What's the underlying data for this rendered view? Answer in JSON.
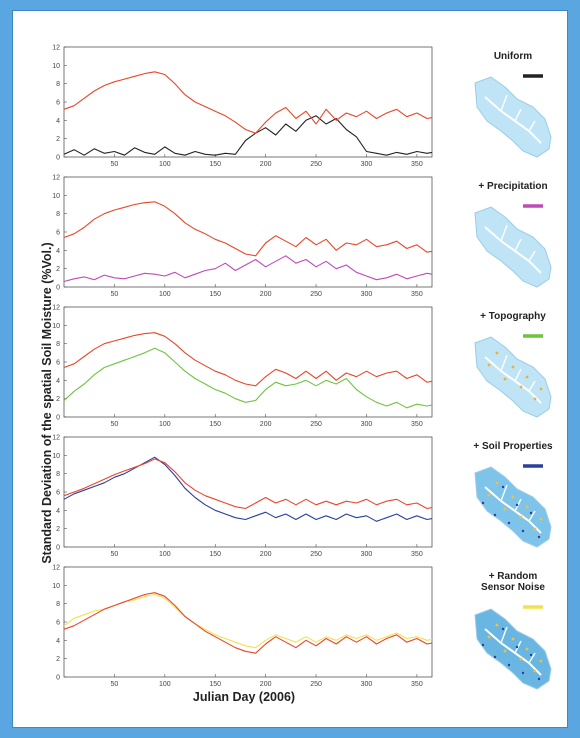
{
  "figure": {
    "ylabel": "Standard Deviation of the spatial Soil Moisture (%Vol.)",
    "xlabel": "Julian Day (2006)"
  },
  "chart_data": [
    {
      "type": "line",
      "xlim": [
        0,
        365
      ],
      "ylim": [
        0,
        12
      ],
      "x_ticks": [
        50,
        100,
        150,
        200,
        250,
        300,
        350
      ],
      "y_ticks": [
        0,
        2,
        4,
        6,
        8,
        10,
        12
      ],
      "legend_title": "Uniform",
      "series": [
        {
          "color": "#e8472a",
          "x": [
            0,
            10,
            20,
            30,
            40,
            50,
            60,
            70,
            80,
            90,
            100,
            110,
            120,
            130,
            140,
            150,
            160,
            170,
            180,
            190,
            200,
            210,
            220,
            230,
            240,
            250,
            260,
            270,
            280,
            290,
            300,
            310,
            320,
            330,
            340,
            350,
            360,
            365
          ],
          "y": [
            5.2,
            5.6,
            6.4,
            7.2,
            7.8,
            8.2,
            8.5,
            8.8,
            9.1,
            9.3,
            9.0,
            8.0,
            6.8,
            6.0,
            5.5,
            5.0,
            4.5,
            3.8,
            3.0,
            2.6,
            3.8,
            4.8,
            5.4,
            4.2,
            5.0,
            3.6,
            5.2,
            4.0,
            4.8,
            4.4,
            5.0,
            4.2,
            4.8,
            5.2,
            4.4,
            4.8,
            4.2,
            4.3
          ]
        },
        {
          "color": "#222222",
          "x": [
            0,
            10,
            20,
            30,
            40,
            50,
            60,
            70,
            80,
            90,
            100,
            110,
            120,
            130,
            140,
            150,
            160,
            170,
            180,
            190,
            200,
            210,
            220,
            230,
            240,
            250,
            260,
            270,
            280,
            290,
            300,
            310,
            320,
            330,
            340,
            350,
            360,
            365
          ],
          "y": [
            0.3,
            0.8,
            0.2,
            0.9,
            0.4,
            0.6,
            0.2,
            1.0,
            0.5,
            0.3,
            1.1,
            0.4,
            0.2,
            0.6,
            0.3,
            0.2,
            0.4,
            0.3,
            1.8,
            2.6,
            3.2,
            2.4,
            3.6,
            2.8,
            4.0,
            4.5,
            3.6,
            4.2,
            3.0,
            2.2,
            0.6,
            0.4,
            0.2,
            0.5,
            0.3,
            0.6,
            0.4,
            0.5
          ]
        }
      ]
    },
    {
      "type": "line",
      "xlim": [
        0,
        365
      ],
      "ylim": [
        0,
        12
      ],
      "x_ticks": [
        50,
        100,
        150,
        200,
        250,
        300,
        350
      ],
      "y_ticks": [
        0,
        2,
        4,
        6,
        8,
        10,
        12
      ],
      "legend_title": "+ Precipitation",
      "series": [
        {
          "color": "#e8472a",
          "x": [
            0,
            10,
            20,
            30,
            40,
            50,
            60,
            70,
            80,
            90,
            100,
            110,
            120,
            130,
            140,
            150,
            160,
            170,
            180,
            190,
            200,
            210,
            220,
            230,
            240,
            250,
            260,
            270,
            280,
            290,
            300,
            310,
            320,
            330,
            340,
            350,
            360,
            365
          ],
          "y": [
            5.4,
            5.8,
            6.5,
            7.4,
            8.0,
            8.4,
            8.7,
            9.0,
            9.2,
            9.3,
            8.8,
            8.0,
            7.0,
            6.3,
            5.8,
            5.2,
            4.8,
            4.2,
            3.6,
            3.4,
            4.8,
            5.6,
            5.0,
            4.4,
            5.4,
            4.6,
            5.2,
            4.0,
            4.8,
            4.6,
            5.2,
            4.4,
            4.6,
            5.0,
            4.2,
            4.6,
            3.8,
            3.9
          ]
        },
        {
          "color": "#c04ab8",
          "x": [
            0,
            10,
            20,
            30,
            40,
            50,
            60,
            70,
            80,
            90,
            100,
            110,
            120,
            130,
            140,
            150,
            160,
            170,
            180,
            190,
            200,
            210,
            220,
            230,
            240,
            250,
            260,
            270,
            280,
            290,
            300,
            310,
            320,
            330,
            340,
            350,
            360,
            365
          ],
          "y": [
            0.6,
            0.9,
            1.1,
            0.8,
            1.3,
            1.0,
            0.9,
            1.2,
            1.5,
            1.4,
            1.2,
            1.6,
            1.0,
            1.4,
            1.8,
            2.0,
            2.6,
            1.8,
            2.4,
            3.0,
            2.2,
            2.8,
            3.4,
            2.6,
            3.0,
            2.2,
            2.8,
            2.0,
            2.4,
            1.6,
            1.2,
            0.8,
            1.0,
            1.4,
            0.9,
            1.2,
            1.5,
            1.4
          ]
        }
      ]
    },
    {
      "type": "line",
      "xlim": [
        0,
        365
      ],
      "ylim": [
        0,
        12
      ],
      "x_ticks": [
        50,
        100,
        150,
        200,
        250,
        300,
        350
      ],
      "y_ticks": [
        0,
        2,
        4,
        6,
        8,
        10,
        12
      ],
      "legend_title": "+ Topography",
      "series": [
        {
          "color": "#e8472a",
          "x": [
            0,
            10,
            20,
            30,
            40,
            50,
            60,
            70,
            80,
            90,
            100,
            110,
            120,
            130,
            140,
            150,
            160,
            170,
            180,
            190,
            200,
            210,
            220,
            230,
            240,
            250,
            260,
            270,
            280,
            290,
            300,
            310,
            320,
            330,
            340,
            350,
            360,
            365
          ],
          "y": [
            5.4,
            5.8,
            6.6,
            7.4,
            8.0,
            8.3,
            8.6,
            8.9,
            9.1,
            9.2,
            8.8,
            8.0,
            7.0,
            6.2,
            5.6,
            5.0,
            4.6,
            4.0,
            3.6,
            3.4,
            4.4,
            5.2,
            4.8,
            4.2,
            5.0,
            4.2,
            5.0,
            4.0,
            4.8,
            4.4,
            5.0,
            4.4,
            4.8,
            5.0,
            4.2,
            4.6,
            3.8,
            3.9
          ]
        },
        {
          "color": "#6fc43e",
          "x": [
            0,
            10,
            20,
            30,
            40,
            50,
            60,
            70,
            80,
            90,
            100,
            110,
            120,
            130,
            140,
            150,
            160,
            170,
            180,
            190,
            200,
            210,
            220,
            230,
            240,
            250,
            260,
            270,
            280,
            290,
            300,
            310,
            320,
            330,
            340,
            350,
            360,
            365
          ],
          "y": [
            1.8,
            2.8,
            3.6,
            4.6,
            5.4,
            5.8,
            6.2,
            6.6,
            7.0,
            7.5,
            7.0,
            6.0,
            5.0,
            4.2,
            3.6,
            3.0,
            2.6,
            2.0,
            1.6,
            1.8,
            3.0,
            3.8,
            3.4,
            3.6,
            4.0,
            3.4,
            4.0,
            3.6,
            4.2,
            3.0,
            2.2,
            1.6,
            1.2,
            1.6,
            1.0,
            1.4,
            1.2,
            1.3
          ]
        }
      ]
    },
    {
      "type": "line",
      "xlim": [
        0,
        365
      ],
      "ylim": [
        0,
        12
      ],
      "x_ticks": [
        50,
        100,
        150,
        200,
        250,
        300,
        350
      ],
      "y_ticks": [
        0,
        2,
        4,
        6,
        8,
        10,
        12
      ],
      "legend_title": "+ Soil Properties",
      "series": [
        {
          "color": "#e8472a",
          "x": [
            0,
            10,
            20,
            30,
            40,
            50,
            60,
            70,
            80,
            90,
            100,
            110,
            120,
            130,
            140,
            150,
            160,
            170,
            180,
            190,
            200,
            210,
            220,
            230,
            240,
            250,
            260,
            270,
            280,
            290,
            300,
            310,
            320,
            330,
            340,
            350,
            360,
            365
          ],
          "y": [
            5.6,
            6.0,
            6.4,
            6.9,
            7.4,
            7.9,
            8.3,
            8.7,
            9.1,
            9.6,
            9.2,
            8.2,
            7.0,
            6.2,
            5.6,
            5.2,
            4.8,
            4.4,
            4.2,
            4.8,
            5.4,
            4.8,
            5.2,
            4.6,
            5.2,
            4.6,
            5.0,
            4.6,
            5.0,
            4.8,
            5.2,
            4.6,
            5.0,
            5.2,
            4.6,
            4.8,
            4.2,
            4.3
          ]
        },
        {
          "color": "#2b3f9e",
          "x": [
            0,
            10,
            20,
            30,
            40,
            50,
            60,
            70,
            80,
            90,
            100,
            110,
            120,
            130,
            140,
            150,
            160,
            170,
            180,
            190,
            200,
            210,
            220,
            230,
            240,
            250,
            260,
            270,
            280,
            290,
            300,
            310,
            320,
            330,
            340,
            350,
            360,
            365
          ],
          "y": [
            5.2,
            5.8,
            6.2,
            6.6,
            7.0,
            7.6,
            8.0,
            8.6,
            9.2,
            9.8,
            9.0,
            7.8,
            6.4,
            5.4,
            4.6,
            4.0,
            3.6,
            3.2,
            3.0,
            3.4,
            3.8,
            3.2,
            3.6,
            3.0,
            3.6,
            3.0,
            3.4,
            3.0,
            3.6,
            3.2,
            3.4,
            2.8,
            3.2,
            3.6,
            3.0,
            3.4,
            3.0,
            3.1
          ]
        }
      ]
    },
    {
      "type": "line",
      "xlim": [
        0,
        365
      ],
      "ylim": [
        0,
        12
      ],
      "x_ticks": [
        50,
        100,
        150,
        200,
        250,
        300,
        350
      ],
      "y_ticks": [
        0,
        2,
        4,
        6,
        8,
        10,
        12
      ],
      "legend_title": "+ Random Sensor Noise",
      "series": [
        {
          "color": "#e8472a",
          "x": [
            0,
            10,
            20,
            30,
            40,
            50,
            60,
            70,
            80,
            90,
            100,
            110,
            120,
            130,
            140,
            150,
            160,
            170,
            180,
            190,
            200,
            210,
            220,
            230,
            240,
            250,
            260,
            270,
            280,
            290,
            300,
            310,
            320,
            330,
            340,
            350,
            360,
            365
          ],
          "y": [
            5.2,
            5.6,
            6.2,
            6.8,
            7.4,
            7.8,
            8.2,
            8.6,
            9.0,
            9.2,
            8.8,
            7.8,
            6.6,
            5.8,
            5.0,
            4.4,
            3.8,
            3.2,
            2.8,
            2.6,
            3.6,
            4.4,
            3.8,
            3.2,
            4.0,
            3.4,
            4.2,
            3.6,
            4.4,
            3.8,
            4.4,
            3.6,
            4.2,
            4.6,
            3.8,
            4.2,
            3.6,
            3.7
          ]
        },
        {
          "color": "#f3e24c",
          "x": [
            0,
            10,
            20,
            30,
            40,
            50,
            60,
            70,
            80,
            90,
            100,
            110,
            120,
            130,
            140,
            150,
            160,
            170,
            180,
            190,
            200,
            210,
            220,
            230,
            240,
            250,
            260,
            270,
            280,
            290,
            300,
            310,
            320,
            330,
            340,
            350,
            360,
            365
          ],
          "y": [
            5.6,
            6.4,
            6.8,
            7.2,
            7.4,
            7.8,
            8.2,
            8.4,
            8.8,
            9.0,
            8.6,
            7.6,
            6.6,
            5.8,
            5.2,
            4.6,
            4.2,
            3.8,
            3.4,
            3.2,
            4.0,
            4.6,
            4.2,
            3.8,
            4.4,
            3.8,
            4.4,
            4.0,
            4.6,
            4.2,
            4.6,
            4.0,
            4.4,
            4.8,
            4.2,
            4.4,
            4.0,
            4.1
          ]
        }
      ]
    }
  ]
}
